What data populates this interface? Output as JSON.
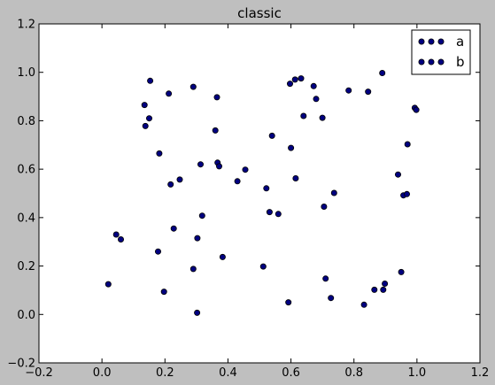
{
  "chart_data": {
    "type": "scatter",
    "title": "classic",
    "xlabel": "",
    "ylabel": "",
    "xlim": [
      -0.2,
      1.2
    ],
    "ylim": [
      -0.2,
      1.2
    ],
    "x_ticks": [
      -0.2,
      0.0,
      0.2,
      0.4,
      0.6,
      0.8,
      1.0,
      1.2
    ],
    "y_ticks": [
      -0.2,
      0.0,
      0.2,
      0.4,
      0.6,
      0.8,
      1.0,
      1.2
    ],
    "x_tick_labels": [
      "−0.2",
      "0.0",
      "0.2",
      "0.4",
      "0.6",
      "0.8",
      "1.0",
      "1.2"
    ],
    "y_tick_labels": [
      "−0.2",
      "0.0",
      "0.2",
      "0.4",
      "0.6",
      "0.8",
      "1.0",
      "1.2"
    ],
    "grid": false,
    "legend_position": "top-right",
    "marker_fill": "#000080",
    "marker_edge": "#000000",
    "series": [
      {
        "name": "a",
        "points": [
          [
            0.02,
            0.125
          ],
          [
            0.045,
            0.33
          ],
          [
            0.06,
            0.31
          ],
          [
            0.135,
            0.865
          ],
          [
            0.138,
            0.778
          ],
          [
            0.15,
            0.81
          ],
          [
            0.153,
            0.965
          ],
          [
            0.178,
            0.26
          ],
          [
            0.182,
            0.665
          ],
          [
            0.197,
            0.094
          ],
          [
            0.212,
            0.912
          ],
          [
            0.218,
            0.537
          ],
          [
            0.228,
            0.355
          ],
          [
            0.247,
            0.557
          ],
          [
            0.29,
            0.94
          ],
          [
            0.29,
            0.188
          ],
          [
            0.302,
            0.007
          ],
          [
            0.303,
            0.315
          ],
          [
            0.313,
            0.62
          ],
          [
            0.318,
            0.408
          ],
          [
            0.36,
            0.76
          ],
          [
            0.365,
            0.897
          ],
          [
            0.367,
            0.627
          ],
          [
            0.372,
            0.612
          ],
          [
            0.383,
            0.237
          ]
        ]
      },
      {
        "name": "b",
        "points": [
          [
            0.43,
            0.55
          ],
          [
            0.455,
            0.598
          ],
          [
            0.512,
            0.198
          ],
          [
            0.522,
            0.521
          ],
          [
            0.532,
            0.423
          ],
          [
            0.54,
            0.738
          ],
          [
            0.56,
            0.415
          ],
          [
            0.592,
            0.05
          ],
          [
            0.597,
            0.953
          ],
          [
            0.6,
            0.688
          ],
          [
            0.613,
            0.97
          ],
          [
            0.615,
            0.562
          ],
          [
            0.632,
            0.975
          ],
          [
            0.64,
            0.82
          ],
          [
            0.672,
            0.943
          ],
          [
            0.68,
            0.89
          ],
          [
            0.7,
            0.812
          ],
          [
            0.705,
            0.445
          ],
          [
            0.71,
            0.148
          ],
          [
            0.727,
            0.068
          ],
          [
            0.737,
            0.502
          ],
          [
            0.783,
            0.925
          ],
          [
            0.832,
            0.04
          ],
          [
            0.845,
            0.92
          ],
          [
            0.865,
            0.102
          ],
          [
            0.89,
            0.997
          ],
          [
            0.893,
            0.102
          ],
          [
            0.898,
            0.127
          ],
          [
            0.94,
            0.578
          ],
          [
            0.95,
            0.175
          ],
          [
            0.957,
            0.492
          ],
          [
            0.97,
            0.703
          ],
          [
            0.968,
            0.497
          ],
          [
            0.993,
            0.853
          ],
          [
            0.998,
            0.845
          ]
        ]
      }
    ]
  }
}
